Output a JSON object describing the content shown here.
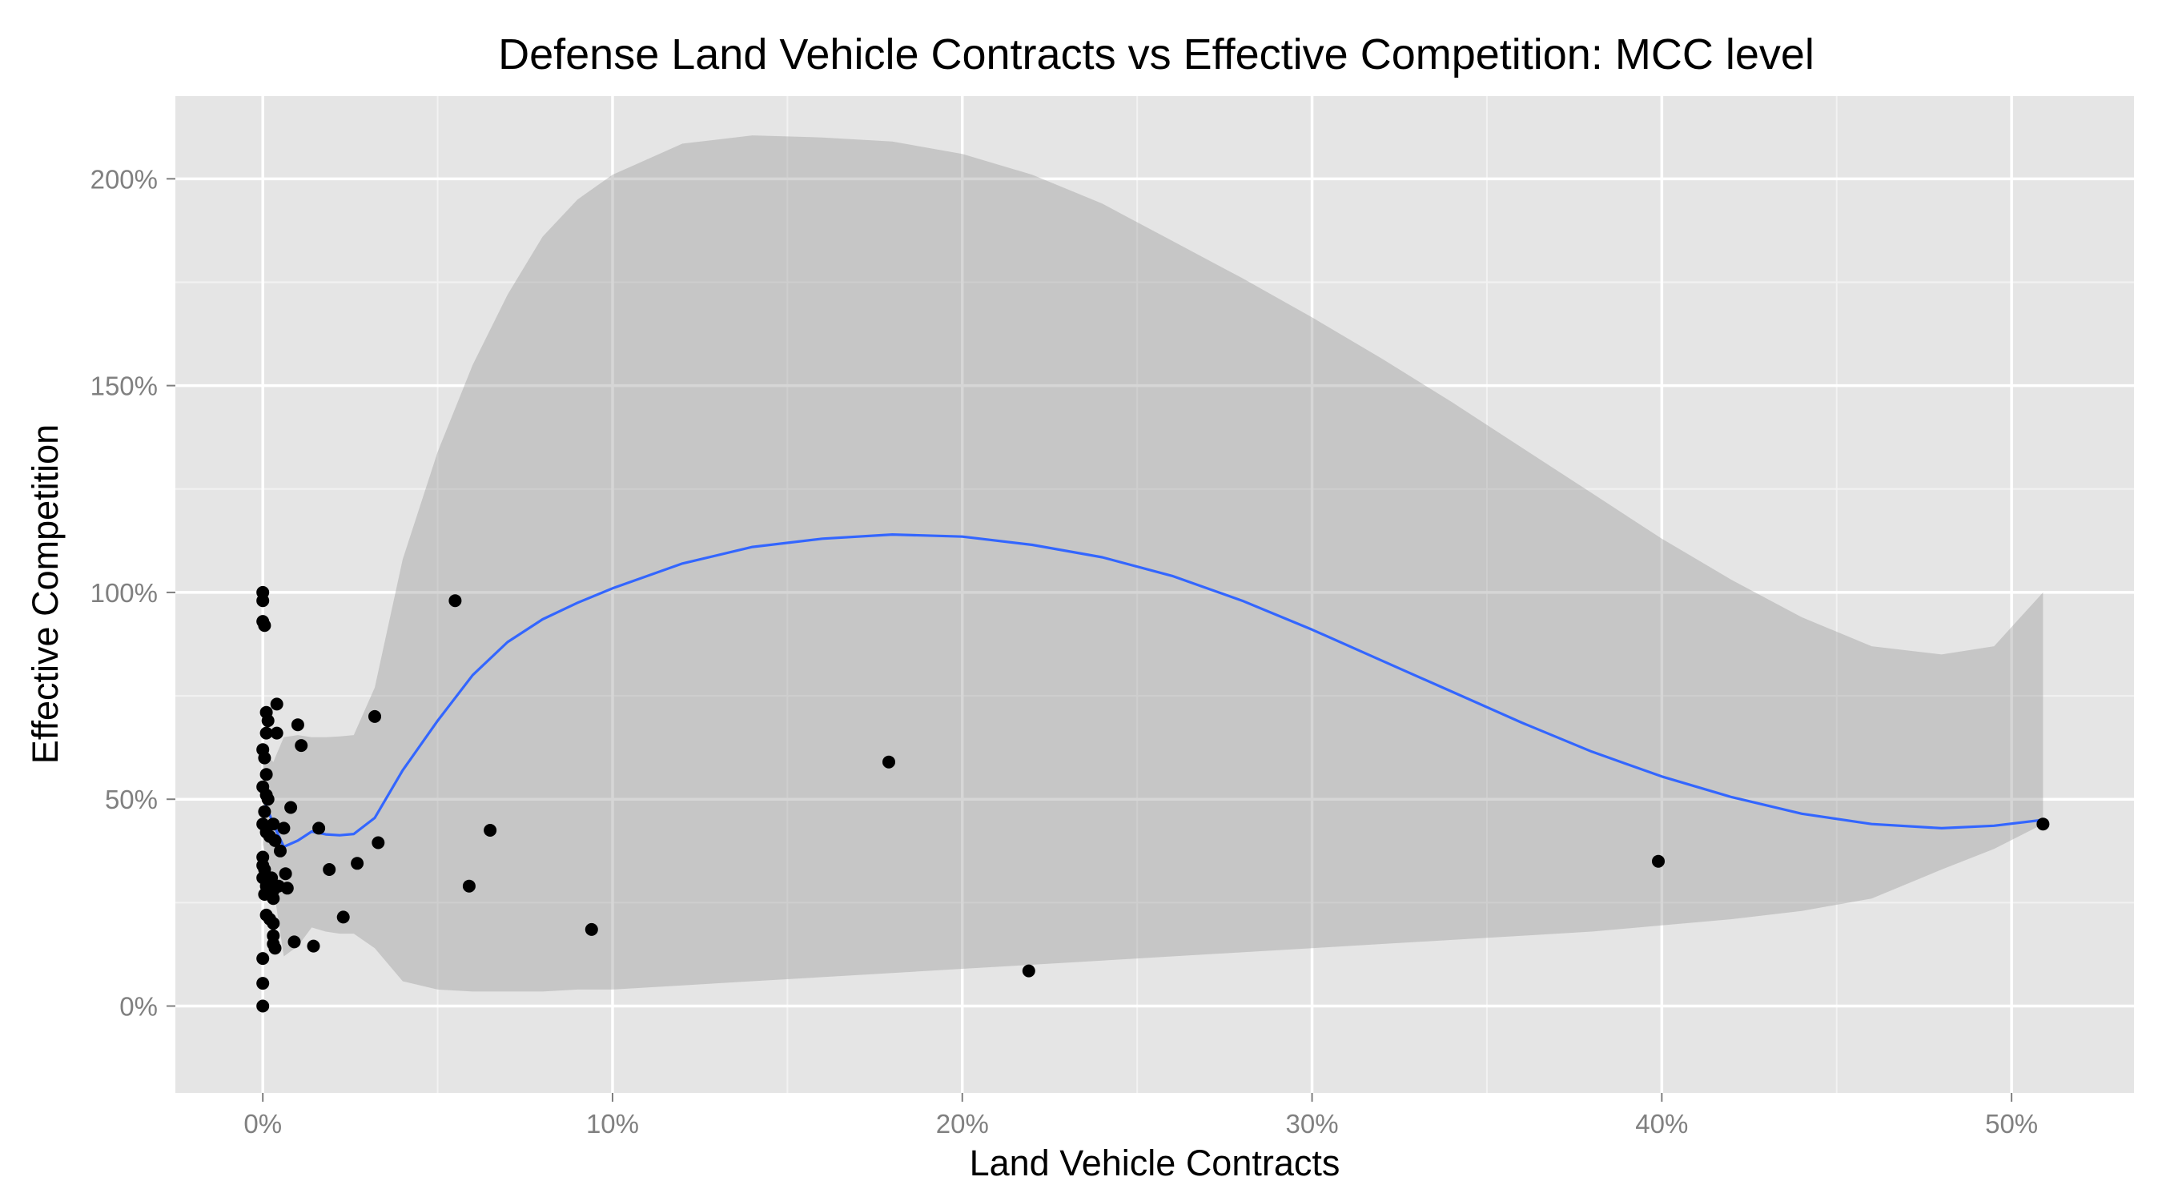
{
  "chart_data": {
    "type": "scatter",
    "title": "Defense Land Vehicle Contracts vs Effective Competition: MCC level",
    "xlabel": "Land Vehicle Contracts",
    "ylabel": "Effective Competition",
    "xlim": [
      -2.5,
      53.5
    ],
    "ylim": [
      -21,
      220
    ],
    "x_ticks": [
      0,
      10,
      20,
      30,
      40,
      50
    ],
    "x_tick_labels": [
      "0%",
      "10%",
      "20%",
      "30%",
      "40%",
      "50%"
    ],
    "y_ticks": [
      0,
      50,
      100,
      150,
      200
    ],
    "y_tick_labels": [
      "0%",
      "50%",
      "100%",
      "150%",
      "200%"
    ],
    "grid": true,
    "point_color": "#000000",
    "smooth_color": "#3366FF",
    "ribbon_color": "#999999",
    "panel_background": "#E5E5E5",
    "points": [
      [
        0.0,
        100.0
      ],
      [
        0.0,
        98.0
      ],
      [
        0.0,
        93.0
      ],
      [
        0.05,
        92.0
      ],
      [
        0.1,
        71.0
      ],
      [
        0.15,
        69.0
      ],
      [
        0.1,
        66.0
      ],
      [
        0.0,
        62.0
      ],
      [
        0.05,
        60.0
      ],
      [
        0.1,
        56.0
      ],
      [
        0.0,
        53.0
      ],
      [
        0.1,
        51.0
      ],
      [
        0.15,
        50.0
      ],
      [
        0.05,
        47.0
      ],
      [
        0.0,
        44.0
      ],
      [
        0.1,
        42.0
      ],
      [
        0.2,
        41.0
      ],
      [
        0.0,
        36.0
      ],
      [
        0.0,
        34.0
      ],
      [
        0.05,
        33.0
      ],
      [
        0.0,
        31.0
      ],
      [
        0.1,
        29.0
      ],
      [
        0.05,
        27.0
      ],
      [
        0.1,
        22.0
      ],
      [
        0.2,
        21.0
      ],
      [
        0.0,
        11.5
      ],
      [
        0.0,
        5.5
      ],
      [
        0.0,
        0.0
      ],
      [
        0.4,
        73.0
      ],
      [
        0.4,
        66.0
      ],
      [
        0.3,
        44.0
      ],
      [
        0.35,
        40.0
      ],
      [
        0.25,
        31.0
      ],
      [
        0.3,
        28.0
      ],
      [
        0.3,
        26.0
      ],
      [
        0.3,
        20.0
      ],
      [
        0.3,
        17.0
      ],
      [
        0.3,
        15.0
      ],
      [
        0.35,
        14.0
      ],
      [
        0.5,
        37.5
      ],
      [
        0.6,
        43.0
      ],
      [
        0.65,
        32.0
      ],
      [
        0.7,
        28.5
      ],
      [
        0.45,
        29.0
      ],
      [
        0.8,
        48.0
      ],
      [
        0.9,
        15.5
      ],
      [
        1.0,
        68.0
      ],
      [
        1.1,
        63.0
      ],
      [
        1.45,
        14.5
      ],
      [
        1.6,
        43.0
      ],
      [
        1.9,
        33.0
      ],
      [
        2.3,
        21.5
      ],
      [
        2.7,
        34.5
      ],
      [
        3.2,
        70.0
      ],
      [
        3.3,
        39.5
      ],
      [
        5.5,
        98.0
      ],
      [
        5.9,
        29.0
      ],
      [
        6.5,
        42.5
      ],
      [
        9.4,
        18.5
      ],
      [
        17.9,
        59.0
      ],
      [
        21.9,
        8.5
      ],
      [
        39.9,
        35.0
      ],
      [
        50.9,
        44.0
      ]
    ],
    "smooth_x": [
      0,
      0.3,
      0.6,
      1.0,
      1.4,
      1.8,
      2.2,
      2.6,
      3.2,
      4,
      5,
      6,
      7,
      8,
      9,
      10,
      12,
      14,
      16,
      18,
      20,
      22,
      24,
      26,
      28,
      30,
      32,
      34,
      36,
      38,
      40,
      42,
      44,
      46,
      48,
      49.5,
      50.9
    ],
    "smooth_y": [
      50.5,
      44,
      38.5,
      40,
      42.2,
      41.5,
      41.3,
      41.6,
      45.5,
      57,
      69,
      80,
      88,
      93.5,
      97.5,
      101,
      107,
      111,
      113,
      114,
      113.5,
      111.5,
      108.5,
      104,
      98,
      91,
      83.5,
      76,
      68.5,
      61.5,
      55.5,
      50.5,
      46.5,
      44,
      43,
      43.6,
      45
    ],
    "ribbon_upper": [
      62,
      59,
      65,
      65.5,
      65,
      65,
      65.2,
      65.5,
      77,
      108,
      134,
      155,
      172,
      186,
      195,
      201,
      208.5,
      210.5,
      210,
      209,
      206,
      201,
      194,
      185,
      176,
      166.5,
      156.5,
      146,
      135,
      124,
      113,
      103,
      94,
      87,
      85,
      87,
      100
    ],
    "ribbon_lower": [
      39,
      29,
      12,
      14.5,
      19,
      18,
      17.5,
      17.5,
      14,
      6,
      4,
      3.5,
      3.5,
      3.5,
      4,
      4,
      5,
      6,
      7,
      8,
      9,
      10,
      11,
      12,
      13,
      14,
      15,
      16,
      17,
      18,
      19.5,
      21,
      23,
      26,
      33,
      38,
      44
    ]
  }
}
